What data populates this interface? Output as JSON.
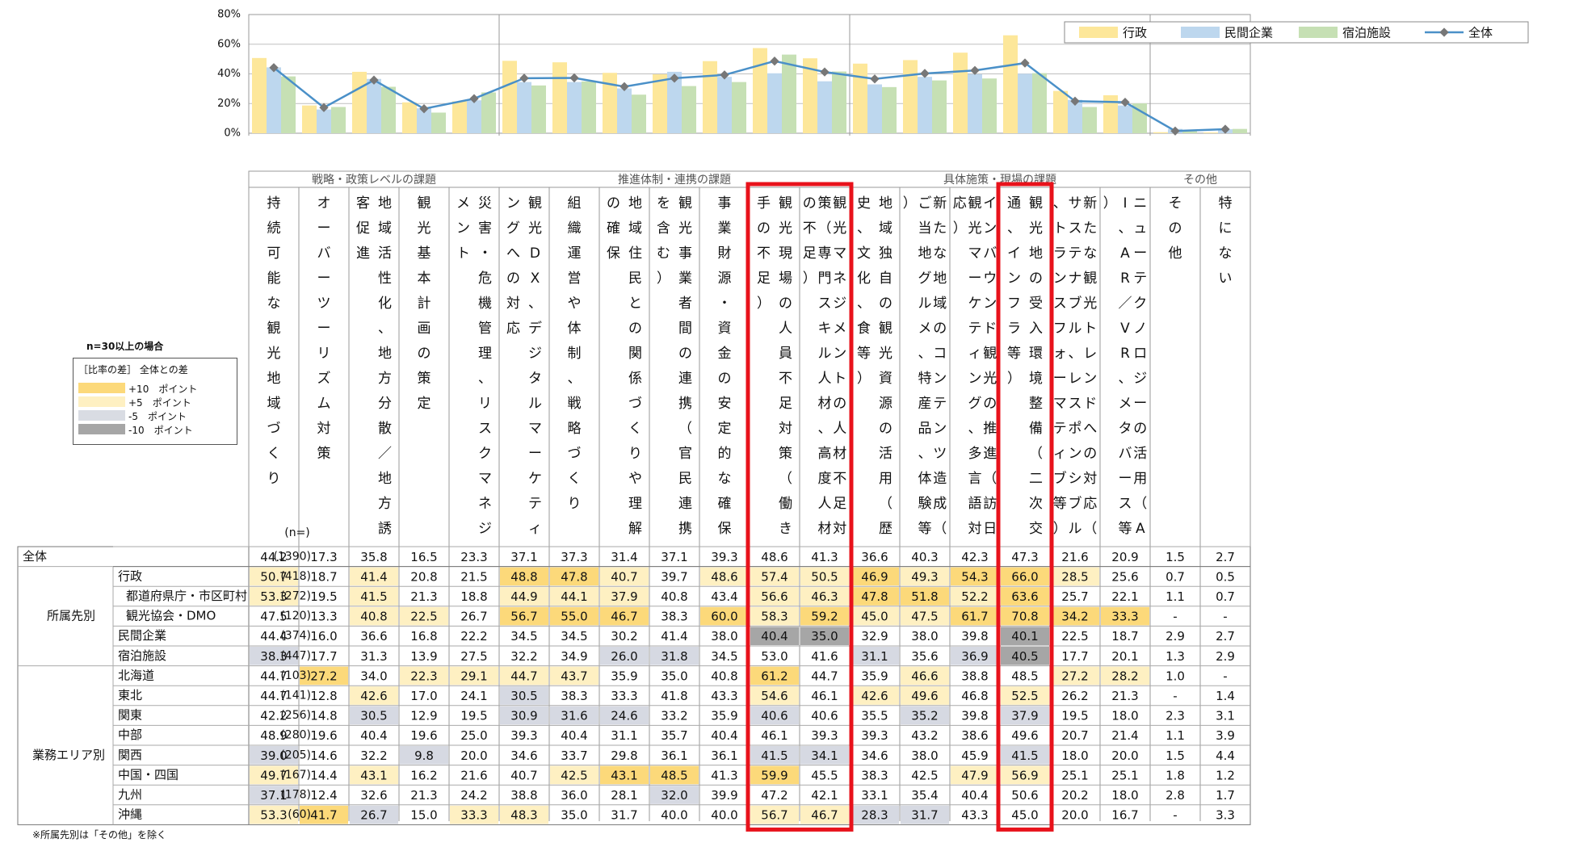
{
  "chart_data": {
    "type": "bar",
    "y_ticks": [
      "80%",
      "60%",
      "40%",
      "20%",
      "0%"
    ],
    "ylim": [
      0,
      80
    ],
    "legend_position": "top-right",
    "series": [
      {
        "name": "行政",
        "color": "#fde79a",
        "key": "gyosei"
      },
      {
        "name": "民間企業",
        "color": "#bdd7ee",
        "key": "minkan"
      },
      {
        "name": "宿泊施設",
        "color": "#c6e0b4",
        "key": "shukuhaku"
      },
      {
        "name": "全体",
        "color": "#4a90c8",
        "key": "zentai",
        "line": true
      }
    ],
    "groups": [
      {
        "label": "戦略・政策レベルの課題",
        "span": 5
      },
      {
        "label": "推進体制・連携の課題",
        "span": 7
      },
      {
        "label": "具体施策・現場の課題",
        "span": 6
      },
      {
        "label": "その他",
        "span": 2
      }
    ],
    "categories": [
      "持続可能な観光地域づくり",
      "オーバーツーリズム対策",
      "地域活性化、地方分散／地方誘客促進",
      "観光基本計画の策定",
      "災害・危機管理、リスクマネジメント",
      "観光DX、デジタルマーケティングへの対応",
      "組織運営や体制、戦略づくり",
      "地域住民との関係づくりや理解の確保",
      "観光事業者間の連携（官民連携を含む）",
      "事業財源・資金の安定的な確保",
      "観光現場の人員不足対策（働き手の不足）",
      "観光マネジメントの人材不足対策（専門スキル人材、高度人材の不足）",
      "地域独自の観光資源の活用（歴史、文化、食等）",
      "新たな地域のコンテンツ造成（ご当地グルメ、特産品、体験等）",
      "インバウンド観光の推進（訪日観光マーケティング、多言語対応）",
      "観光地の受入環境整備（二次交通、インフラ等）",
      "新たな観光トレンドへの対応（サステナブル、レスポンシブル、トランスフォーマティブ等）",
      "ニューテクノロジーの活用（AI、AR／VR、メタバース等）",
      "その他",
      "特にない"
    ],
    "bar_values": {
      "gyosei": [
        50.7,
        18.7,
        41.4,
        20.8,
        21.5,
        48.8,
        47.8,
        40.7,
        39.7,
        48.6,
        57.4,
        50.5,
        46.9,
        49.3,
        54.3,
        66.0,
        28.5,
        25.6,
        0.7,
        0.5
      ],
      "minkan": [
        44.4,
        16.0,
        36.6,
        16.8,
        22.2,
        34.5,
        34.5,
        30.2,
        41.4,
        38.0,
        40.4,
        35.0,
        32.9,
        38.0,
        39.8,
        40.1,
        22.5,
        18.7,
        2.9,
        2.7
      ],
      "shukuhaku": [
        38.3,
        17.7,
        31.3,
        13.9,
        27.5,
        32.2,
        34.9,
        26.0,
        31.8,
        34.5,
        53.0,
        41.6,
        31.1,
        35.6,
        36.9,
        40.5,
        17.7,
        20.1,
        1.3,
        2.9
      ],
      "zentai": [
        44.2,
        17.3,
        35.8,
        16.5,
        23.3,
        37.1,
        37.3,
        31.4,
        37.1,
        39.3,
        48.6,
        41.3,
        36.6,
        40.3,
        42.3,
        47.3,
        21.6,
        20.9,
        1.5,
        2.7
      ]
    },
    "n_header": "(n=)",
    "rows": [
      {
        "group": "全体",
        "sub": "",
        "n": "(1390)",
        "values": [
          "44.2",
          "17.3",
          "35.8",
          "16.5",
          "23.3",
          "37.1",
          "37.3",
          "31.4",
          "37.1",
          "39.3",
          "48.6",
          "41.3",
          "36.6",
          "40.3",
          "42.3",
          "47.3",
          "21.6",
          "20.9",
          "1.5",
          "2.7"
        ],
        "diff": [
          0,
          0,
          0,
          0,
          0,
          0,
          0,
          0,
          0,
          0,
          0,
          0,
          0,
          0,
          0,
          0,
          0,
          0,
          0,
          0
        ]
      },
      {
        "group": "所属先別",
        "sub": "行政",
        "n": "(418)",
        "values": [
          "50.7",
          "18.7",
          "41.4",
          "20.8",
          "21.5",
          "48.8",
          "47.8",
          "40.7",
          "39.7",
          "48.6",
          "57.4",
          "50.5",
          "46.9",
          "49.3",
          "54.3",
          "66.0",
          "28.5",
          "25.6",
          "0.7",
          "0.5"
        ],
        "diff": [
          1,
          0,
          1,
          0,
          0,
          2,
          2,
          1,
          0,
          1,
          1,
          1,
          2,
          1,
          2,
          2,
          1,
          0,
          0,
          0
        ]
      },
      {
        "group": "",
        "sub": "都道府県庁・市区町村",
        "n": "(272)",
        "values": [
          "53.3",
          "19.5",
          "41.5",
          "21.3",
          "18.8",
          "44.9",
          "44.1",
          "37.9",
          "40.8",
          "43.4",
          "56.6",
          "46.3",
          "47.8",
          "51.8",
          "52.2",
          "63.6",
          "25.7",
          "22.1",
          "1.1",
          "0.7"
        ],
        "diff": [
          1,
          0,
          1,
          0,
          0,
          1,
          1,
          1,
          0,
          0,
          1,
          1,
          2,
          2,
          1,
          2,
          0,
          0,
          0,
          0
        ]
      },
      {
        "group": "",
        "sub": "観光協会・DMO",
        "n": "(120)",
        "values": [
          "47.5",
          "13.3",
          "40.8",
          "22.5",
          "26.7",
          "56.7",
          "55.0",
          "46.7",
          "38.3",
          "60.0",
          "58.3",
          "59.2",
          "45.0",
          "47.5",
          "61.7",
          "70.8",
          "34.2",
          "33.3",
          "-",
          "-"
        ],
        "diff": [
          0,
          0,
          1,
          1,
          0,
          2,
          2,
          2,
          0,
          2,
          1,
          2,
          1,
          1,
          2,
          2,
          2,
          2,
          0,
          0
        ]
      },
      {
        "group": "",
        "sub": "民間企業",
        "n": "(374)",
        "values": [
          "44.4",
          "16.0",
          "36.6",
          "16.8",
          "22.2",
          "34.5",
          "34.5",
          "30.2",
          "41.4",
          "38.0",
          "40.4",
          "35.0",
          "32.9",
          "38.0",
          "39.8",
          "40.1",
          "22.5",
          "18.7",
          "2.9",
          "2.7"
        ],
        "diff": [
          0,
          0,
          0,
          0,
          0,
          0,
          0,
          0,
          0,
          0,
          -2,
          -2,
          0,
          0,
          0,
          -2,
          0,
          0,
          0,
          0
        ]
      },
      {
        "group": "",
        "sub": "宿泊施設",
        "n": "(447)",
        "values": [
          "38.3",
          "17.7",
          "31.3",
          "13.9",
          "27.5",
          "32.2",
          "34.9",
          "26.0",
          "31.8",
          "34.5",
          "53.0",
          "41.6",
          "31.1",
          "35.6",
          "36.9",
          "40.5",
          "17.7",
          "20.1",
          "1.3",
          "2.9"
        ],
        "diff": [
          -1,
          0,
          0,
          0,
          0,
          0,
          0,
          -1,
          -1,
          0,
          0,
          0,
          -1,
          0,
          -1,
          -2,
          0,
          0,
          0,
          0
        ]
      },
      {
        "group": "業務エリア別",
        "sub": "北海道",
        "n": "(103)",
        "values": [
          "44.7",
          "27.2",
          "34.0",
          "22.3",
          "29.1",
          "44.7",
          "43.7",
          "35.9",
          "35.0",
          "40.8",
          "61.2",
          "44.7",
          "35.9",
          "46.6",
          "38.8",
          "48.5",
          "27.2",
          "28.2",
          "1.0",
          "-"
        ],
        "diff": [
          0,
          2,
          0,
          1,
          1,
          1,
          1,
          0,
          0,
          0,
          2,
          0,
          0,
          1,
          0,
          0,
          1,
          1,
          0,
          0
        ]
      },
      {
        "group": "",
        "sub": "東北",
        "n": "(141)",
        "values": [
          "44.7",
          "12.8",
          "42.6",
          "17.0",
          "24.1",
          "30.5",
          "38.3",
          "33.3",
          "41.8",
          "43.3",
          "54.6",
          "46.1",
          "42.6",
          "49.6",
          "46.8",
          "52.5",
          "26.2",
          "21.3",
          "-",
          "1.4"
        ],
        "diff": [
          0,
          0,
          1,
          0,
          0,
          -1,
          0,
          0,
          0,
          0,
          1,
          0,
          1,
          1,
          0,
          1,
          0,
          0,
          0,
          0
        ]
      },
      {
        "group": "",
        "sub": "関東",
        "n": "(256)",
        "values": [
          "42.2",
          "14.8",
          "30.5",
          "12.9",
          "19.5",
          "30.9",
          "31.6",
          "24.6",
          "33.2",
          "35.9",
          "40.6",
          "40.6",
          "35.5",
          "35.2",
          "39.8",
          "37.9",
          "19.5",
          "18.0",
          "2.3",
          "3.1"
        ],
        "diff": [
          0,
          0,
          -1,
          0,
          0,
          -1,
          -1,
          -1,
          0,
          0,
          -1,
          0,
          0,
          -1,
          0,
          -1,
          0,
          0,
          0,
          0
        ]
      },
      {
        "group": "",
        "sub": "中部",
        "n": "(280)",
        "values": [
          "48.9",
          "19.6",
          "40.4",
          "19.6",
          "25.0",
          "39.3",
          "40.4",
          "31.1",
          "35.7",
          "40.4",
          "46.1",
          "39.3",
          "39.3",
          "43.2",
          "38.6",
          "49.6",
          "20.7",
          "21.4",
          "1.1",
          "3.9"
        ],
        "diff": [
          0,
          0,
          0,
          0,
          0,
          0,
          0,
          0,
          0,
          0,
          0,
          0,
          0,
          0,
          0,
          0,
          0,
          0,
          0,
          0
        ]
      },
      {
        "group": "",
        "sub": "関西",
        "n": "(205)",
        "values": [
          "39.0",
          "14.6",
          "32.2",
          "9.8",
          "20.0",
          "34.6",
          "33.7",
          "29.8",
          "36.1",
          "36.1",
          "41.5",
          "34.1",
          "34.6",
          "38.0",
          "45.9",
          "41.5",
          "18.0",
          "20.0",
          "1.5",
          "4.4"
        ],
        "diff": [
          -1,
          0,
          0,
          -1,
          0,
          0,
          0,
          0,
          0,
          0,
          -1,
          -1,
          0,
          0,
          0,
          -1,
          0,
          0,
          0,
          0
        ]
      },
      {
        "group": "",
        "sub": "中国・四国",
        "n": "(167)",
        "values": [
          "49.7",
          "14.4",
          "43.1",
          "16.2",
          "21.6",
          "40.7",
          "42.5",
          "43.1",
          "48.5",
          "41.3",
          "59.9",
          "45.5",
          "38.3",
          "42.5",
          "47.9",
          "56.9",
          "25.1",
          "25.1",
          "1.8",
          "1.2"
        ],
        "diff": [
          1,
          0,
          1,
          0,
          0,
          0,
          1,
          2,
          2,
          0,
          2,
          0,
          0,
          0,
          1,
          1,
          0,
          0,
          0,
          0
        ]
      },
      {
        "group": "",
        "sub": "九州",
        "n": "(178)",
        "values": [
          "37.1",
          "12.4",
          "32.6",
          "21.3",
          "24.2",
          "38.8",
          "36.0",
          "28.1",
          "32.0",
          "39.9",
          "47.2",
          "42.1",
          "33.1",
          "35.4",
          "40.4",
          "50.6",
          "20.2",
          "18.0",
          "2.8",
          "1.7"
        ],
        "diff": [
          -1,
          0,
          0,
          0,
          0,
          0,
          0,
          0,
          -1,
          0,
          0,
          0,
          0,
          0,
          0,
          0,
          0,
          0,
          0,
          0
        ]
      },
      {
        "group": "",
        "sub": "沖縄",
        "n": "(60)",
        "values": [
          "53.3",
          "41.7",
          "26.7",
          "15.0",
          "33.3",
          "48.3",
          "35.0",
          "31.7",
          "40.0",
          "40.0",
          "56.7",
          "46.7",
          "28.3",
          "31.7",
          "43.3",
          "45.0",
          "20.0",
          "16.7",
          "-",
          "3.3"
        ],
        "diff": [
          1,
          2,
          -1,
          0,
          1,
          1,
          0,
          0,
          0,
          0,
          1,
          1,
          -1,
          -1,
          0,
          0,
          0,
          0,
          0,
          0
        ]
      }
    ],
    "highlight_columns": [
      10,
      11,
      15
    ]
  },
  "legend_box": {
    "n_note": "n=30以上の場合",
    "title": "［比率の差］ 全体との差",
    "items": [
      {
        "label": "+10　ポイント",
        "color": "#fcd97a"
      },
      {
        "label": "+5　ポイント",
        "color": "#fef0c2"
      },
      {
        "label": "-5　ポイント",
        "color": "#d9dce3"
      },
      {
        "label": "-10　ポイント",
        "color": "#a6a6a6"
      }
    ]
  },
  "footnote": "※所属先別は「その他」を除く",
  "colors": {
    "plus10": "#fcd97a",
    "plus5": "#fef0c2",
    "minus5": "#d6d9e2",
    "minus10": "#a6a6a6",
    "highlight": "#e8121b",
    "line": "#4a90c8",
    "grid": "#bfbfbf"
  }
}
